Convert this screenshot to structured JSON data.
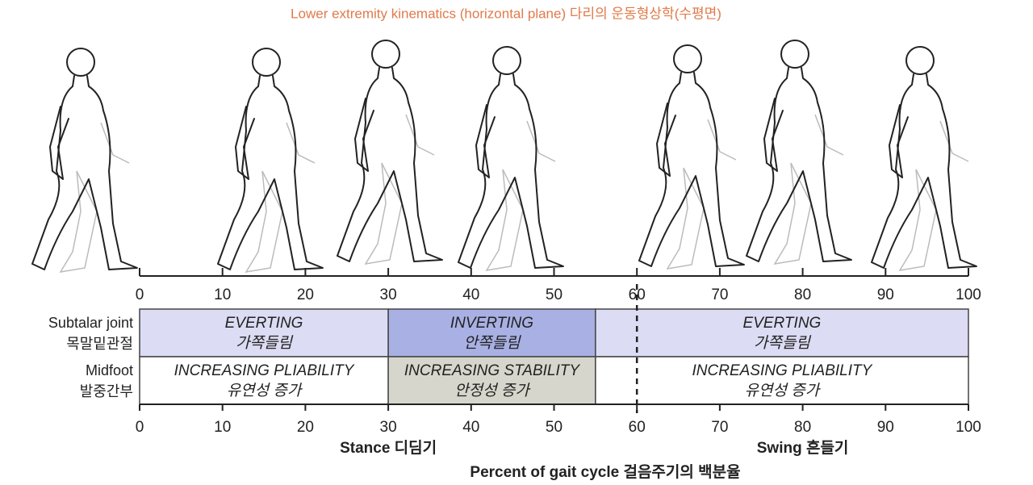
{
  "title": "Lower extremity kinematics (horizontal plane) 다리의 운동형상학(수평면)",
  "axis": {
    "lim": [
      0,
      100
    ],
    "ticks": [
      0,
      10,
      20,
      30,
      40,
      50,
      60,
      70,
      80,
      90,
      100
    ]
  },
  "rows": [
    {
      "label": "Subtalar joint",
      "label_ko": "목말밑관절",
      "segments": [
        {
          "range": [
            0,
            30
          ],
          "label": "EVERTING",
          "label_ko": "가쪽들림",
          "color": "#dcdcf4"
        },
        {
          "range": [
            30,
            55
          ],
          "label": "INVERTING",
          "label_ko": "안쪽들림",
          "color": "#a8b0e4"
        },
        {
          "range": [
            55,
            100
          ],
          "label": "EVERTING",
          "label_ko": "가쪽들림",
          "color": "#dcdcf4"
        }
      ]
    },
    {
      "label": "Midfoot",
      "label_ko": "발중간부",
      "segments": [
        {
          "range": [
            0,
            30
          ],
          "label": "INCREASING PLIABILITY",
          "label_ko": "유연성 증가",
          "color": "#ffffff"
        },
        {
          "range": [
            30,
            55
          ],
          "label": "INCREASING STABILITY",
          "label_ko": "안정성 증가",
          "color": "#d6d6cc"
        },
        {
          "range": [
            55,
            100
          ],
          "label": "INCREASING PLIABILITY",
          "label_ko": "유연성 증가",
          "color": "#ffffff"
        }
      ]
    }
  ],
  "phases": [
    {
      "name": "Stance 디딤기",
      "range": [
        0,
        60
      ]
    },
    {
      "name": "Swing 흔들기",
      "range": [
        60,
        100
      ]
    }
  ],
  "xlabel": "Percent of gait cycle 걸음주기의 백분율"
}
